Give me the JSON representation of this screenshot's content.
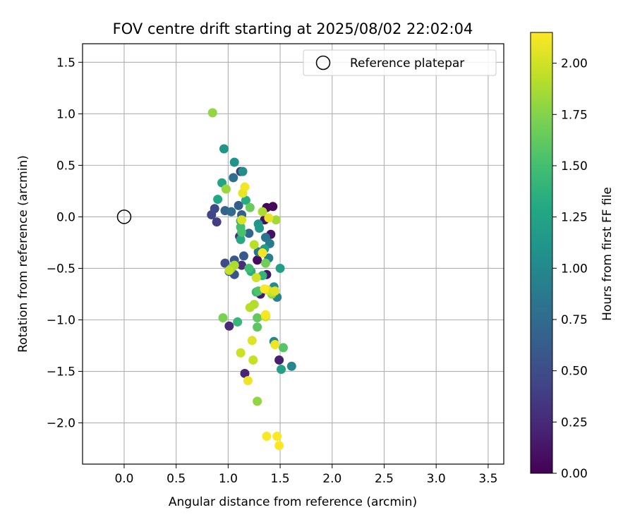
{
  "chart_data": {
    "type": "scatter",
    "title": "FOV centre drift starting at 2025/08/02 22:02:04",
    "xlabel": "Angular distance from reference (arcmin)",
    "ylabel": "Rotation from reference (arcmin)",
    "xlim": [
      -0.4,
      3.65
    ],
    "ylim": [
      -2.4,
      1.68
    ],
    "xticks": [
      0.0,
      0.5,
      1.0,
      1.5,
      2.0,
      2.5,
      3.0,
      3.5
    ],
    "xtick_labels": [
      "0.0",
      "0.5",
      "1.0",
      "1.5",
      "2.0",
      "2.5",
      "3.0",
      "3.5"
    ],
    "yticks": [
      1.5,
      1.0,
      0.5,
      0.0,
      -0.5,
      -1.0,
      -1.5,
      -2.0
    ],
    "ytick_labels": [
      "1.5",
      "1.0",
      "0.5",
      "0.0",
      "−0.5",
      "−1.0",
      "−1.5",
      "−2.0"
    ],
    "grid": true,
    "legend": {
      "placement": "top-right",
      "label": "Reference platepar"
    },
    "reference_point": {
      "x": 0.0,
      "y": 0.0
    },
    "colorbar": {
      "label": "Hours from first FF file",
      "range": [
        0.0,
        2.15
      ],
      "ticks": [
        0.0,
        0.25,
        0.5,
        0.75,
        1.0,
        1.25,
        1.5,
        1.75,
        2.0
      ],
      "tick_labels": [
        "0.00",
        "0.25",
        "0.50",
        "0.75",
        "1.00",
        "1.25",
        "1.50",
        "1.75",
        "2.00"
      ],
      "colormap": "viridis"
    },
    "points": [
      {
        "x": 1.37,
        "y": 0.09,
        "c": 0.02
      },
      {
        "x": 1.43,
        "y": 0.1,
        "c": 0.05
      },
      {
        "x": 1.35,
        "y": -0.03,
        "c": 0.08
      },
      {
        "x": 1.41,
        "y": -0.17,
        "c": 0.1
      },
      {
        "x": 1.28,
        "y": -0.42,
        "c": 0.06
      },
      {
        "x": 1.37,
        "y": -0.56,
        "c": 0.12
      },
      {
        "x": 1.31,
        "y": -0.75,
        "c": 0.15
      },
      {
        "x": 1.49,
        "y": -1.39,
        "c": 0.18
      },
      {
        "x": 1.16,
        "y": -1.52,
        "c": 0.22
      },
      {
        "x": 1.01,
        "y": -1.06,
        "c": 0.25
      },
      {
        "x": 1.13,
        "y": -0.47,
        "c": 0.28
      },
      {
        "x": 1.11,
        "y": -0.19,
        "c": 0.3
      },
      {
        "x": 1.12,
        "y": 0.44,
        "c": 0.33
      },
      {
        "x": 0.89,
        "y": -0.05,
        "c": 0.38
      },
      {
        "x": 0.84,
        "y": 0.02,
        "c": 0.45
      },
      {
        "x": 0.87,
        "y": 0.08,
        "c": 0.48
      },
      {
        "x": 0.97,
        "y": -0.45,
        "c": 0.5
      },
      {
        "x": 1.01,
        "y": -0.53,
        "c": 0.52
      },
      {
        "x": 1.06,
        "y": -0.56,
        "c": 0.55
      },
      {
        "x": 1.06,
        "y": -0.42,
        "c": 0.58
      },
      {
        "x": 1.15,
        "y": -0.38,
        "c": 0.6
      },
      {
        "x": 1.1,
        "y": 0.11,
        "c": 0.62
      },
      {
        "x": 1.13,
        "y": 0.02,
        "c": 0.65
      },
      {
        "x": 0.97,
        "y": 0.06,
        "c": 0.68
      },
      {
        "x": 1.2,
        "y": -0.16,
        "c": 0.7
      },
      {
        "x": 1.03,
        "y": 0.05,
        "c": 0.75
      },
      {
        "x": 1.05,
        "y": 0.38,
        "c": 0.78
      },
      {
        "x": 1.36,
        "y": -0.2,
        "c": 0.82
      },
      {
        "x": 1.29,
        "y": -0.34,
        "c": 0.85
      },
      {
        "x": 1.4,
        "y": -0.26,
        "c": 0.88
      },
      {
        "x": 1.39,
        "y": -0.4,
        "c": 0.9
      },
      {
        "x": 1.47,
        "y": -0.78,
        "c": 0.95
      },
      {
        "x": 1.44,
        "y": -1.21,
        "c": 0.98
      },
      {
        "x": 1.61,
        "y": -1.45,
        "c": 1.0
      },
      {
        "x": 1.44,
        "y": -0.68,
        "c": 1.03
      },
      {
        "x": 1.14,
        "y": 0.44,
        "c": 1.05
      },
      {
        "x": 1.06,
        "y": 0.53,
        "c": 1.08
      },
      {
        "x": 0.96,
        "y": 0.66,
        "c": 1.1
      },
      {
        "x": 1.29,
        "y": -0.07,
        "c": 1.12
      },
      {
        "x": 1.3,
        "y": -0.11,
        "c": 1.15
      },
      {
        "x": 1.35,
        "y": -0.31,
        "c": 1.18
      },
      {
        "x": 1.5,
        "y": -0.5,
        "c": 1.2
      },
      {
        "x": 1.51,
        "y": -1.48,
        "c": 1.22
      },
      {
        "x": 0.94,
        "y": 0.33,
        "c": 1.25
      },
      {
        "x": 0.9,
        "y": 0.17,
        "c": 1.28
      },
      {
        "x": 1.12,
        "y": -0.22,
        "c": 1.3
      },
      {
        "x": 1.17,
        "y": 0.16,
        "c": 1.32
      },
      {
        "x": 1.22,
        "y": -0.53,
        "c": 1.35
      },
      {
        "x": 1.12,
        "y": -0.04,
        "c": 1.38
      },
      {
        "x": 1.33,
        "y": -0.57,
        "c": 1.4
      },
      {
        "x": 1.09,
        "y": -1.02,
        "c": 1.42
      },
      {
        "x": 1.27,
        "y": -0.73,
        "c": 1.45
      },
      {
        "x": 1.2,
        "y": -0.5,
        "c": 1.48
      },
      {
        "x": 1.12,
        "y": -0.1,
        "c": 1.5
      },
      {
        "x": 1.13,
        "y": -0.15,
        "c": 1.52
      },
      {
        "x": 1.29,
        "y": -0.72,
        "c": 1.55
      },
      {
        "x": 1.53,
        "y": -1.27,
        "c": 1.58
      },
      {
        "x": 1.28,
        "y": -1.07,
        "c": 1.6
      },
      {
        "x": 1.28,
        "y": -0.98,
        "c": 1.62
      },
      {
        "x": 1.21,
        "y": 0.09,
        "c": 1.65
      },
      {
        "x": 1.36,
        "y": -0.45,
        "c": 1.68
      },
      {
        "x": 0.95,
        "y": -0.98,
        "c": 1.72
      },
      {
        "x": 1.03,
        "y": -0.5,
        "c": 1.75
      },
      {
        "x": 1.42,
        "y": -0.75,
        "c": 1.78
      },
      {
        "x": 1.28,
        "y": -1.79,
        "c": 1.8
      },
      {
        "x": 0.98,
        "y": 0.27,
        "c": 1.82
      },
      {
        "x": 1.46,
        "y": -0.03,
        "c": 1.85
      },
      {
        "x": 1.06,
        "y": -0.47,
        "c": 1.88
      },
      {
        "x": 1.25,
        "y": -0.85,
        "c": 1.9
      },
      {
        "x": 1.33,
        "y": 0.05,
        "c": 1.88
      },
      {
        "x": 0.85,
        "y": 1.01,
        "c": 1.8
      },
      {
        "x": 1.21,
        "y": -0.88,
        "c": 1.92
      },
      {
        "x": 1.25,
        "y": -0.27,
        "c": 1.93
      },
      {
        "x": 1.42,
        "y": -0.73,
        "c": 1.95
      },
      {
        "x": 1.01,
        "y": -0.52,
        "c": 1.95
      },
      {
        "x": 1.24,
        "y": -1.39,
        "c": 1.97
      },
      {
        "x": 1.12,
        "y": -1.32,
        "c": 1.98
      },
      {
        "x": 1.36,
        "y": -0.97,
        "c": 2.0
      },
      {
        "x": 1.27,
        "y": -0.59,
        "c": 2.0
      },
      {
        "x": 1.38,
        "y": -0.71,
        "c": 2.02
      },
      {
        "x": 1.13,
        "y": -0.03,
        "c": 2.03
      },
      {
        "x": 1.45,
        "y": -0.72,
        "c": 2.05
      },
      {
        "x": 1.23,
        "y": -1.2,
        "c": 2.05
      },
      {
        "x": 1.14,
        "y": 0.23,
        "c": 2.07
      },
      {
        "x": 1.39,
        "y": -0.01,
        "c": 2.08
      },
      {
        "x": 1.19,
        "y": -1.59,
        "c": 2.1
      },
      {
        "x": 1.45,
        "y": -1.24,
        "c": 2.1
      },
      {
        "x": 1.16,
        "y": 0.29,
        "c": 2.12
      },
      {
        "x": 1.33,
        "y": -0.35,
        "c": 2.12
      },
      {
        "x": 1.36,
        "y": -0.95,
        "c": 2.13
      },
      {
        "x": 1.37,
        "y": -2.13,
        "c": 2.14
      },
      {
        "x": 1.47,
        "y": -2.13,
        "c": 2.14
      },
      {
        "x": 1.49,
        "y": -2.22,
        "c": 2.15
      },
      {
        "x": 1.35,
        "y": -0.7,
        "c": 2.15
      }
    ]
  }
}
